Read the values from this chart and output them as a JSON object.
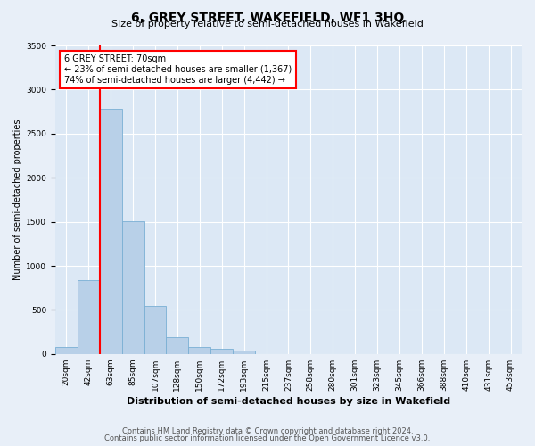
{
  "title": "6, GREY STREET, WAKEFIELD, WF1 3HQ",
  "subtitle": "Size of property relative to semi-detached houses in Wakefield",
  "xlabel": "Distribution of semi-detached houses by size in Wakefield",
  "ylabel": "Number of semi-detached properties",
  "footnote1": "Contains HM Land Registry data © Crown copyright and database right 2024.",
  "footnote2": "Contains public sector information licensed under the Open Government Licence v3.0.",
  "annotation_title": "6 GREY STREET: 70sqm",
  "annotation_line1": "← 23% of semi-detached houses are smaller (1,367)",
  "annotation_line2": "74% of semi-detached houses are larger (4,442) →",
  "bar_labels": [
    "20sqm",
    "42sqm",
    "63sqm",
    "85sqm",
    "107sqm",
    "128sqm",
    "150sqm",
    "172sqm",
    "193sqm",
    "215sqm",
    "237sqm",
    "258sqm",
    "280sqm",
    "301sqm",
    "323sqm",
    "345sqm",
    "366sqm",
    "388sqm",
    "410sqm",
    "431sqm",
    "453sqm"
  ],
  "bar_values": [
    80,
    840,
    2780,
    1510,
    545,
    195,
    75,
    55,
    35,
    0,
    0,
    0,
    0,
    0,
    0,
    0,
    0,
    0,
    0,
    0,
    0
  ],
  "bar_color": "#b8d0e8",
  "bar_edge_color": "#7aafd4",
  "red_line_color": "red",
  "annotation_box_facecolor": "white",
  "annotation_box_edgecolor": "red",
  "background_color": "#e8eff8",
  "plot_background_color": "#dce8f5",
  "ylim": [
    0,
    3500
  ],
  "yticks": [
    0,
    500,
    1000,
    1500,
    2000,
    2500,
    3000,
    3500
  ],
  "title_fontsize": 10,
  "subtitle_fontsize": 8,
  "ylabel_fontsize": 7,
  "xlabel_fontsize": 8,
  "tick_fontsize": 6.5,
  "footnote_fontsize": 6,
  "annotation_fontsize": 7
}
